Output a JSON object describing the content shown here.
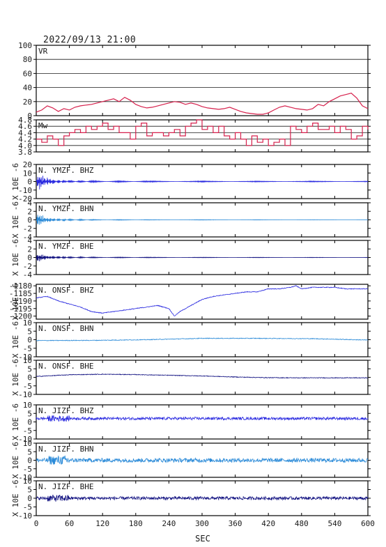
{
  "title": "2022/09/13 21:00",
  "xlabel": "SEC",
  "x_ticks": [
    "0",
    "60",
    "120",
    "180",
    "240",
    "300",
    "360",
    "420",
    "480",
    "540",
    "600"
  ],
  "colors": {
    "frame": "#000000",
    "vr_line": "#d6204c",
    "mw_line": "#d6204c",
    "grid": "#1a1a1a",
    "trace_dark": "#2a2ae0",
    "trace_light": "#2a8ad8",
    "trace_navy": "#101080"
  },
  "chart_data": [
    {
      "type": "line",
      "label": "VR",
      "ylim": [
        0,
        100
      ],
      "yticks": [
        "0",
        "20",
        "40",
        "60",
        "80",
        "100"
      ],
      "grid": true,
      "x": [
        0,
        10,
        20,
        30,
        40,
        50,
        60,
        70,
        80,
        90,
        100,
        110,
        120,
        130,
        140,
        150,
        160,
        170,
        180,
        190,
        200,
        210,
        220,
        230,
        240,
        250,
        260,
        270,
        280,
        290,
        300,
        310,
        320,
        330,
        340,
        350,
        360,
        370,
        380,
        390,
        400,
        410,
        420,
        430,
        440,
        450,
        460,
        470,
        480,
        490,
        500,
        510,
        520,
        530,
        540,
        550,
        560,
        570,
        580,
        590,
        600
      ],
      "values": [
        5,
        8,
        14,
        11,
        6,
        10,
        8,
        12,
        14,
        15,
        16,
        18,
        20,
        22,
        24,
        20,
        26,
        22,
        16,
        13,
        11,
        12,
        14,
        16,
        18,
        20,
        19,
        16,
        18,
        16,
        13,
        11,
        10,
        9,
        10,
        12,
        9,
        6,
        4,
        3,
        2,
        2,
        4,
        8,
        12,
        14,
        12,
        10,
        9,
        8,
        10,
        16,
        14,
        20,
        24,
        28,
        30,
        32,
        25,
        14,
        10
      ]
    },
    {
      "type": "line",
      "label": "Mw",
      "ylim": [
        3.8,
        4.8
      ],
      "yticks": [
        "3.8",
        "4.0",
        "4.2",
        "4.4",
        "4.6",
        "4.8"
      ],
      "grid": true,
      "x": [
        0,
        10,
        20,
        30,
        40,
        50,
        60,
        70,
        80,
        90,
        100,
        110,
        120,
        130,
        140,
        150,
        160,
        170,
        180,
        190,
        200,
        210,
        220,
        230,
        240,
        250,
        260,
        270,
        280,
        290,
        300,
        310,
        320,
        330,
        340,
        350,
        360,
        370,
        380,
        390,
        400,
        410,
        420,
        430,
        440,
        450,
        460,
        470,
        480,
        490,
        500,
        510,
        520,
        530,
        540,
        550,
        560,
        570,
        580,
        590,
        600
      ],
      "values": [
        4.2,
        4.1,
        4.3,
        4.2,
        4.0,
        4.3,
        4.4,
        4.5,
        4.4,
        4.6,
        4.5,
        4.6,
        4.7,
        4.5,
        4.6,
        4.4,
        4.4,
        4.2,
        4.6,
        4.7,
        4.3,
        4.4,
        4.4,
        4.3,
        4.4,
        4.5,
        4.3,
        4.6,
        4.7,
        4.8,
        4.5,
        4.6,
        4.4,
        4.6,
        4.3,
        4.2,
        4.4,
        4.2,
        4.0,
        4.3,
        4.1,
        4.2,
        4.0,
        4.1,
        4.2,
        4.0,
        4.6,
        4.5,
        4.4,
        4.6,
        4.7,
        4.5,
        4.5,
        4.6,
        4.4,
        4.6,
        4.5,
        4.2,
        4.3,
        4.6,
        4.5
      ]
    },
    {
      "type": "line",
      "label": "N. YMZF. BHZ",
      "ylim": [
        -20,
        20
      ],
      "yticks": [
        "20",
        "10",
        "0",
        "-10",
        "-20"
      ],
      "unit": "X 10E -6",
      "color": "trace_dark",
      "x": [
        0,
        3,
        6,
        9,
        12,
        15,
        20,
        25,
        30,
        40,
        50,
        60,
        80,
        100,
        150,
        200,
        300,
        400,
        500,
        600
      ],
      "values": [
        2,
        -8,
        10,
        -9,
        7,
        -6,
        5,
        -4,
        3,
        -2,
        2,
        -1.5,
        1.2,
        -1,
        0.8,
        -0.7,
        0.6,
        -0.5,
        0.5,
        -0.4
      ]
    },
    {
      "type": "line",
      "label": "N. YMZF. BHN",
      "ylim": [
        -4,
        4
      ],
      "yticks": [
        "4",
        "2",
        "0",
        "-2",
        "-4"
      ],
      "unit": "X 10E -6",
      "color": "trace_light",
      "x": [
        0,
        3,
        6,
        9,
        12,
        15,
        20,
        25,
        30,
        40,
        50,
        60,
        80,
        100,
        150,
        200,
        300,
        400,
        500,
        600
      ],
      "values": [
        0,
        -1.5,
        1.6,
        -1.2,
        1.0,
        -0.8,
        0.6,
        -0.5,
        0.4,
        -0.3,
        0.25,
        -0.2,
        0.15,
        -0.1,
        0.08,
        -0.05,
        0.05,
        -0.04,
        0.03,
        -0.02
      ]
    },
    {
      "type": "line",
      "label": "N. YMZF. BHE",
      "ylim": [
        -4,
        4
      ],
      "yticks": [
        "4",
        "2",
        "0",
        "-2",
        "-4"
      ],
      "unit": "X 10E -6",
      "color": "trace_navy",
      "x": [
        0,
        3,
        6,
        9,
        12,
        15,
        20,
        25,
        30,
        40,
        50,
        60,
        80,
        100,
        150,
        200,
        300,
        400,
        500,
        600
      ],
      "values": [
        0,
        -1.0,
        1.1,
        -0.9,
        0.8,
        -0.7,
        0.5,
        -0.4,
        0.4,
        -0.3,
        0.25,
        -0.2,
        0.15,
        -0.12,
        0.1,
        -0.08,
        0.06,
        -0.05,
        0.04,
        -0.03
      ]
    },
    {
      "type": "line",
      "label": "N. ONSF. BHZ",
      "ylim": [
        -1202,
        -1179
      ],
      "yticks": [
        "-1180",
        "-1185",
        "-1190",
        "-1195",
        "-1200"
      ],
      "unit": "X 10E -6",
      "color": "trace_dark",
      "x": [
        0,
        20,
        40,
        60,
        80,
        100,
        120,
        140,
        160,
        180,
        200,
        220,
        240,
        250,
        260,
        280,
        300,
        320,
        340,
        360,
        380,
        400,
        420,
        440,
        460,
        470,
        480,
        500,
        520,
        540,
        560,
        580,
        600
      ],
      "values": [
        -1188,
        -1187,
        -1190,
        -1192,
        -1194,
        -1197,
        -1198,
        -1197,
        -1196,
        -1195,
        -1194,
        -1193,
        -1195,
        -1200,
        -1197,
        -1193,
        -1189,
        -1187,
        -1186,
        -1185,
        -1184,
        -1184,
        -1182,
        -1182,
        -1181,
        -1180,
        -1182,
        -1181,
        -1181,
        -1181,
        -1182,
        -1182,
        -1182
      ]
    },
    {
      "type": "line",
      "label": "N. ONSF. BHN",
      "ylim": [
        -10,
        10
      ],
      "yticks": [
        "10",
        "5",
        "0",
        "-5",
        "-10"
      ],
      "unit": "X 10E -6",
      "color": "trace_light",
      "x": [
        0,
        100,
        200,
        300,
        400,
        500,
        600
      ],
      "values": [
        -0.5,
        -0.4,
        0,
        0.8,
        0.8,
        0.6,
        -0.2
      ]
    },
    {
      "type": "line",
      "label": "N. ONSF. BHE",
      "ylim": [
        -10,
        10
      ],
      "yticks": [
        "10",
        "5",
        "0",
        "-5",
        "-10"
      ],
      "unit": "X 10E -6",
      "color": "trace_navy",
      "x": [
        0,
        60,
        120,
        180,
        240,
        300,
        360,
        420,
        480,
        540,
        600
      ],
      "values": [
        0.5,
        1.5,
        1.8,
        1.6,
        1.2,
        0.8,
        0.2,
        -0.2,
        -0.3,
        -0.3,
        -0.3
      ]
    },
    {
      "type": "line",
      "label": "N. JIZF. BHZ",
      "ylim": [
        -10,
        10
      ],
      "yticks": [
        "10",
        "5",
        "0",
        "-5",
        "-10"
      ],
      "unit": "X 10E -6",
      "color": "trace_dark",
      "x": [
        0,
        600
      ],
      "values": [
        2,
        2
      ],
      "noise_amplitude": 0.8
    },
    {
      "type": "line",
      "label": "N. JIZF. BHN",
      "ylim": [
        -10,
        10
      ],
      "yticks": [
        "10",
        "5",
        "0",
        "-5",
        "-10"
      ],
      "unit": "X 10E -6",
      "color": "trace_light",
      "x": [
        0,
        600
      ],
      "values": [
        0,
        0
      ],
      "noise_amplitude": 1.2
    },
    {
      "type": "line",
      "label": "N. JIZF. BHE",
      "ylim": [
        -10,
        10
      ],
      "yticks": [
        "10",
        "5",
        "0",
        "-5",
        "-10"
      ],
      "unit": "X 10E -6",
      "color": "trace_navy",
      "x": [
        0,
        600
      ],
      "values": [
        0,
        0
      ],
      "noise_amplitude": 0.9
    }
  ]
}
